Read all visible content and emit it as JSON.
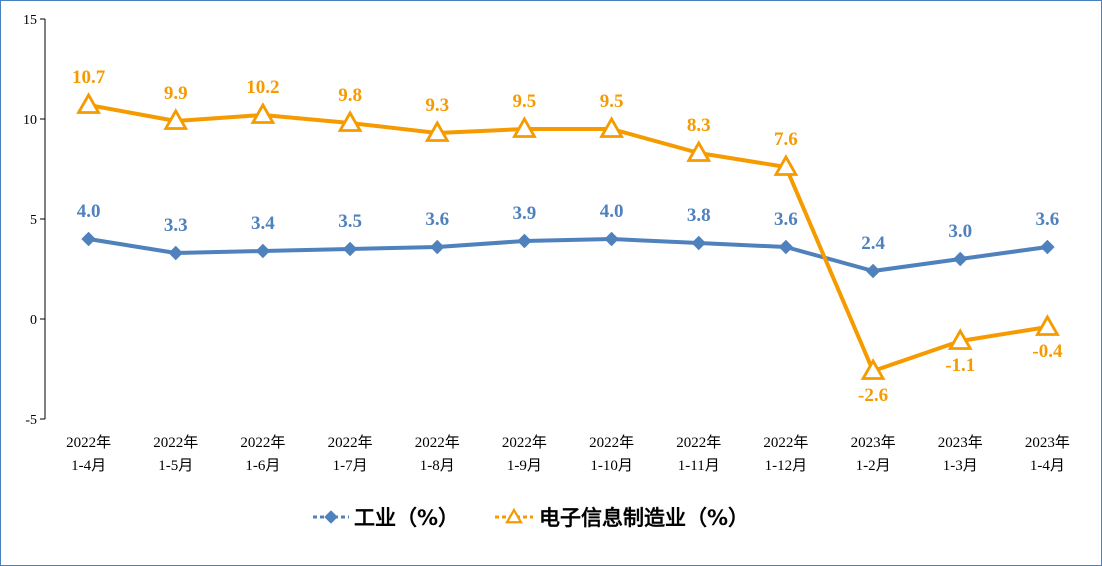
{
  "chart_data": {
    "type": "line",
    "title": "",
    "xlabel": "",
    "ylabel": "",
    "ylim": [
      -5,
      15
    ],
    "yticks": [
      -5,
      0,
      5,
      10,
      15
    ],
    "grid": false,
    "legend": "bottom",
    "categories": [
      [
        "2022年",
        "1-4月"
      ],
      [
        "2022年",
        "1-5月"
      ],
      [
        "2022年",
        "1-6月"
      ],
      [
        "2022年",
        "1-7月"
      ],
      [
        "2022年",
        "1-8月"
      ],
      [
        "2022年",
        "1-9月"
      ],
      [
        "2022年",
        "1-10月"
      ],
      [
        "2022年",
        "1-11月"
      ],
      [
        "2022年",
        "1-12月"
      ],
      [
        "2023年",
        "1-2月"
      ],
      [
        "2023年",
        "1-3月"
      ],
      [
        "2023年",
        "1-4月"
      ]
    ],
    "series": [
      {
        "name": "工业（%）",
        "color": "#4f81bd",
        "marker": "diamond",
        "values": [
          4.0,
          3.3,
          3.4,
          3.5,
          3.6,
          3.9,
          4.0,
          3.8,
          3.6,
          2.4,
          3.0,
          3.6
        ],
        "labels": [
          "4.0",
          "3.3",
          "3.4",
          "3.5",
          "3.6",
          "3.9",
          "4.0",
          "3.8",
          "3.6",
          "2.4",
          "3.0",
          "3.6"
        ]
      },
      {
        "name": "电子信息制造业（%）",
        "color": "#f59b00",
        "marker": "triangle",
        "values": [
          10.7,
          9.9,
          10.2,
          9.8,
          9.3,
          9.5,
          9.5,
          8.3,
          7.6,
          -2.6,
          -1.1,
          -0.4
        ],
        "labels": [
          "10.7",
          "9.9",
          "10.2",
          "9.8",
          "9.3",
          "9.5",
          "9.5",
          "8.3",
          "7.6",
          "-2.6",
          "-1.1",
          "-0.4"
        ]
      }
    ]
  }
}
